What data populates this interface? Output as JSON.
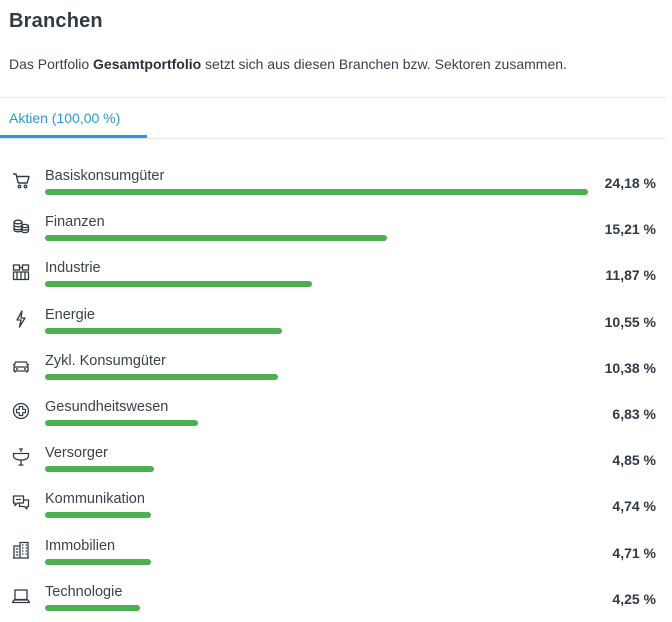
{
  "header": {
    "title": "Branchen",
    "subtitle_pre": "Das Portfolio ",
    "subtitle_bold": "Gesamtportfolio",
    "subtitle_post": " setzt sich aus diesen Branchen bzw. Sektoren zusammen."
  },
  "tabs": [
    {
      "label": "Aktien (100,00 %)",
      "active": true
    }
  ],
  "colors": {
    "bar": "#4caf50",
    "accent": "#2a9bd8",
    "text": "#333a44"
  },
  "sectors": [
    {
      "name": "Basiskonsumgüter",
      "value": 24.18,
      "value_label": "24,18 %",
      "icon": "shopping-cart-icon"
    },
    {
      "name": "Finanzen",
      "value": 15.21,
      "value_label": "15,21 %",
      "icon": "coins-icon"
    },
    {
      "name": "Industrie",
      "value": 11.87,
      "value_label": "11,87 %",
      "icon": "factory-icon"
    },
    {
      "name": "Energie",
      "value": 10.55,
      "value_label": "10,55 %",
      "icon": "lightning-icon"
    },
    {
      "name": "Zykl. Konsumgüter",
      "value": 10.38,
      "value_label": "10,38 %",
      "icon": "car-icon"
    },
    {
      "name": "Gesundheitswesen",
      "value": 6.83,
      "value_label": "6,83 %",
      "icon": "medical-cross-icon"
    },
    {
      "name": "Versorger",
      "value": 4.85,
      "value_label": "4,85 %",
      "icon": "faucet-icon"
    },
    {
      "name": "Kommunikation",
      "value": 4.74,
      "value_label": "4,74 %",
      "icon": "chat-bubbles-icon"
    },
    {
      "name": "Immobilien",
      "value": 4.71,
      "value_label": "4,71 %",
      "icon": "building-icon"
    },
    {
      "name": "Technologie",
      "value": 4.25,
      "value_label": "4,25 %",
      "icon": "laptop-icon"
    }
  ]
}
